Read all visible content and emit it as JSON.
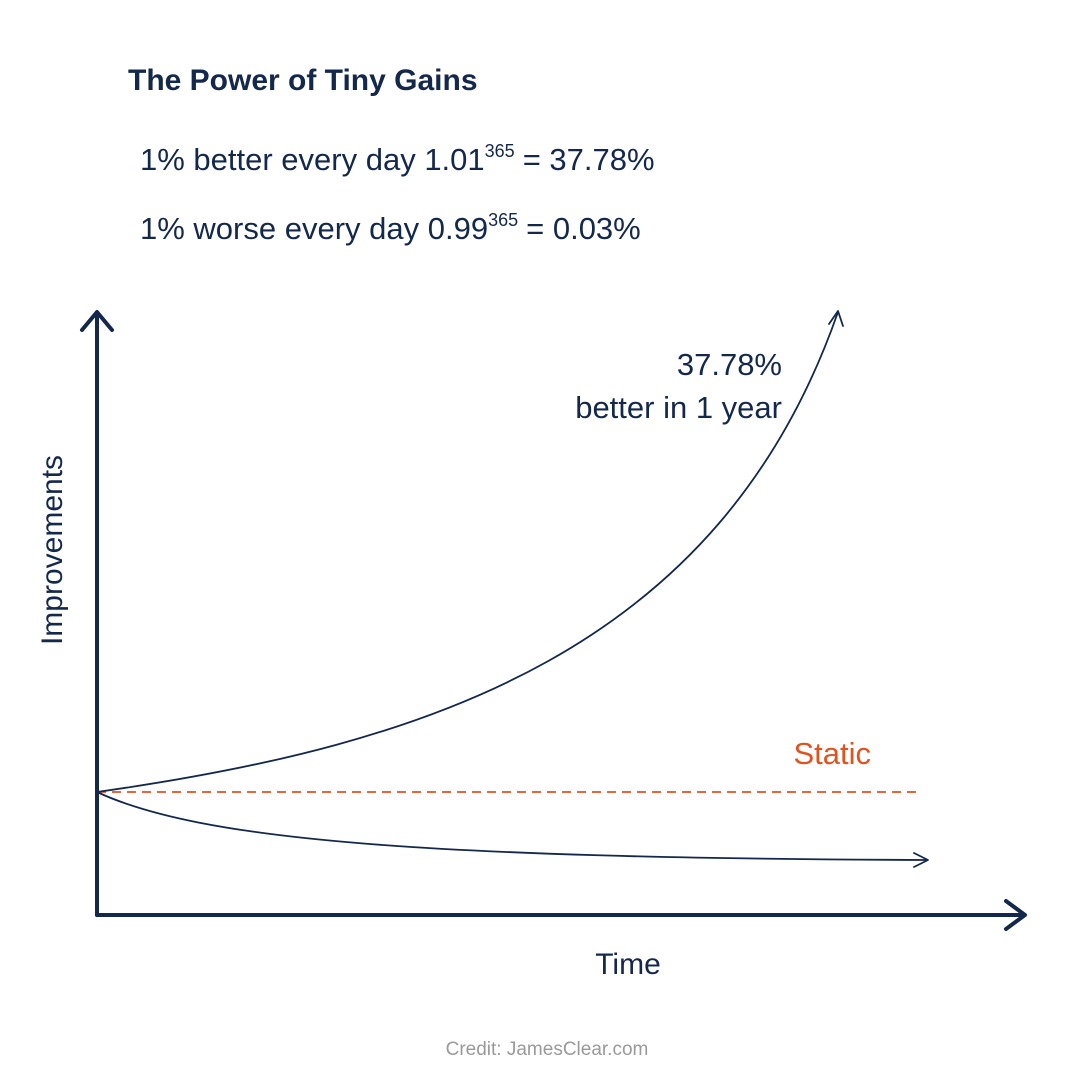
{
  "title": "The Power of Tiny Gains",
  "formulas": [
    {
      "text": "1% better every day 1.01",
      "exponent": "365",
      "result": "= 37.78%"
    },
    {
      "text": "1% worse every day 0.99",
      "exponent": "365",
      "result": "= 0.03%"
    }
  ],
  "axes": {
    "y_label": "Improvements",
    "x_label": "Time"
  },
  "annotations": {
    "growth": [
      "37.78%",
      "better in 1 year"
    ],
    "static": "Static"
  },
  "credit": "Credit: JamesClear.com"
}
